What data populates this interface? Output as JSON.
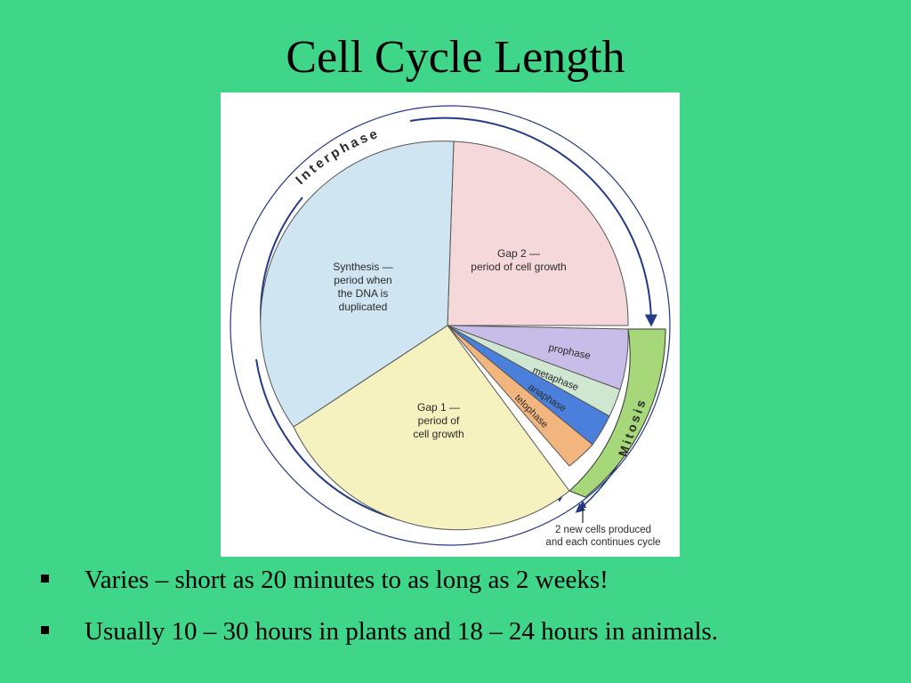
{
  "slide": {
    "title": "Cell Cycle Length",
    "bullets": [
      "Varies – short as 20 minutes to as long as 2 weeks!",
      "Usually 10 – 30 hours in plants and 18 – 24 hours in animals."
    ]
  },
  "diagram": {
    "outer_arc_labels": {
      "interphase": "Interphase",
      "mitosis": "Mitosis"
    },
    "segments": {
      "synthesis": [
        "Synthesis —",
        "period when",
        "the DNA is",
        "duplicated"
      ],
      "gap2": [
        "Gap 2 —",
        "period of cell growth"
      ],
      "gap1": [
        "Gap 1 —",
        "period of",
        "cell growth"
      ],
      "prophase": "prophase",
      "metaphase": "metaphase",
      "anaphase": "anaphase",
      "telophase": "telophase"
    },
    "note": [
      "2 new cells produced",
      "and each continues cycle"
    ],
    "colors": {
      "background": "#3fd68a",
      "synthesis": "#cfe6f2",
      "gap2": "#f5d8da",
      "gap1": "#f6f2c0",
      "prophase": "#c8bde8",
      "metaphase": "#cfe6d0",
      "anaphase": "#4a7fdc",
      "telophase": "#f2b57e",
      "mitosis_band": "#a6d87a",
      "ring": "#233a86"
    }
  }
}
